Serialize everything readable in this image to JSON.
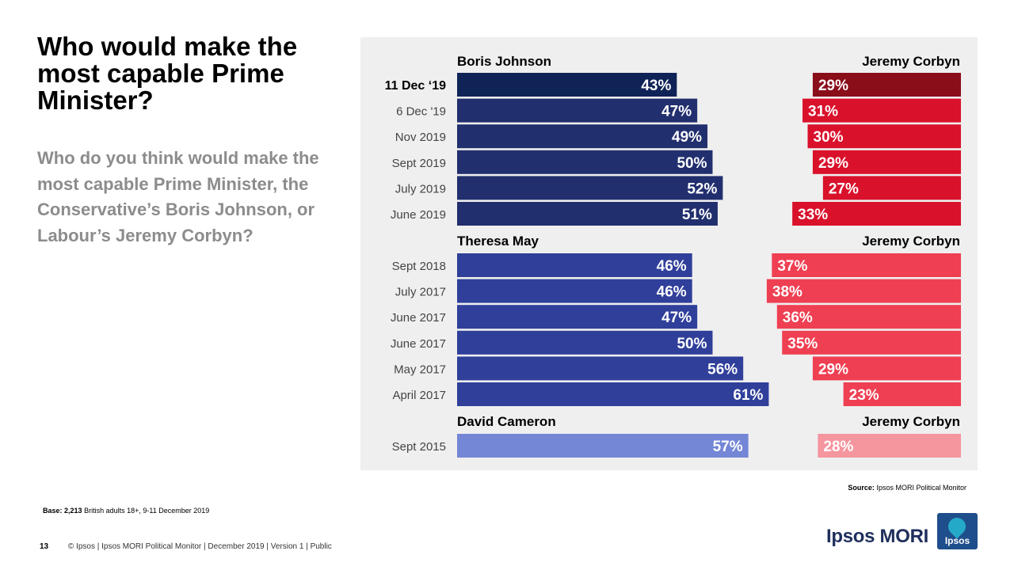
{
  "title": "Who would make the most capable Prime Minister?",
  "subtitle": "Who do you think would make the most capable Prime Minister, the Conservative’s Boris Johnson, or Labour’s Jeremy Corbyn?",
  "source_label": "Source:",
  "source_text": "Ipsos MORI Political Monitor",
  "base_label": "Base:",
  "base_number": "2,213",
  "base_text": "British adults 18+, 9-11 December 2019",
  "page_number": "13",
  "footer_text": "© Ipsos | Ipsos MORI Political Monitor | December 2019 | Version 1 | Public",
  "brand": "Ipsos MORI",
  "logo_text": "Ipsos",
  "chart_data": {
    "type": "bar",
    "orientation": "horizontal",
    "layout": "diverging",
    "value_unit": "%",
    "groups": [
      {
        "left_label": "Boris Johnson",
        "right_label": "Jeremy Corbyn",
        "rows": [
          {
            "date": "11 Dec ‘19",
            "left": 43,
            "right": 29,
            "highlight": true
          },
          {
            "date": "6 Dec '19",
            "left": 47,
            "right": 31
          },
          {
            "date": "Nov 2019",
            "left": 49,
            "right": 30
          },
          {
            "date": "Sept 2019",
            "left": 50,
            "right": 29
          },
          {
            "date": "July 2019",
            "left": 52,
            "right": 27
          },
          {
            "date": "June 2019",
            "left": 51,
            "right": 33
          }
        ]
      },
      {
        "left_label": "Theresa May",
        "right_label": "Jeremy Corbyn",
        "rows": [
          {
            "date": "Sept 2018",
            "left": 46,
            "right": 37
          },
          {
            "date": "July 2017",
            "left": 46,
            "right": 38
          },
          {
            "date": "June 2017",
            "left": 47,
            "right": 36
          },
          {
            "date": "June 2017",
            "left": 50,
            "right": 35
          },
          {
            "date": "May 2017",
            "left": 56,
            "right": 29
          },
          {
            "date": "April 2017",
            "left": 61,
            "right": 23
          }
        ]
      },
      {
        "left_label": "David Cameron",
        "right_label": "Jeremy Corbyn",
        "rows": [
          {
            "date": "Sept 2015",
            "left": 57,
            "right": 28
          }
        ]
      }
    ],
    "colors": {
      "boris_highlight": "#0f2357",
      "boris": "#222f6e",
      "may": "#2f3f9a",
      "cameron": "#7486d6",
      "corbyn_highlight": "#8a0d1a",
      "corbyn_2019": "#d9112b",
      "corbyn_2017": "#ef3f52",
      "corbyn_2015": "#f5959e"
    }
  }
}
